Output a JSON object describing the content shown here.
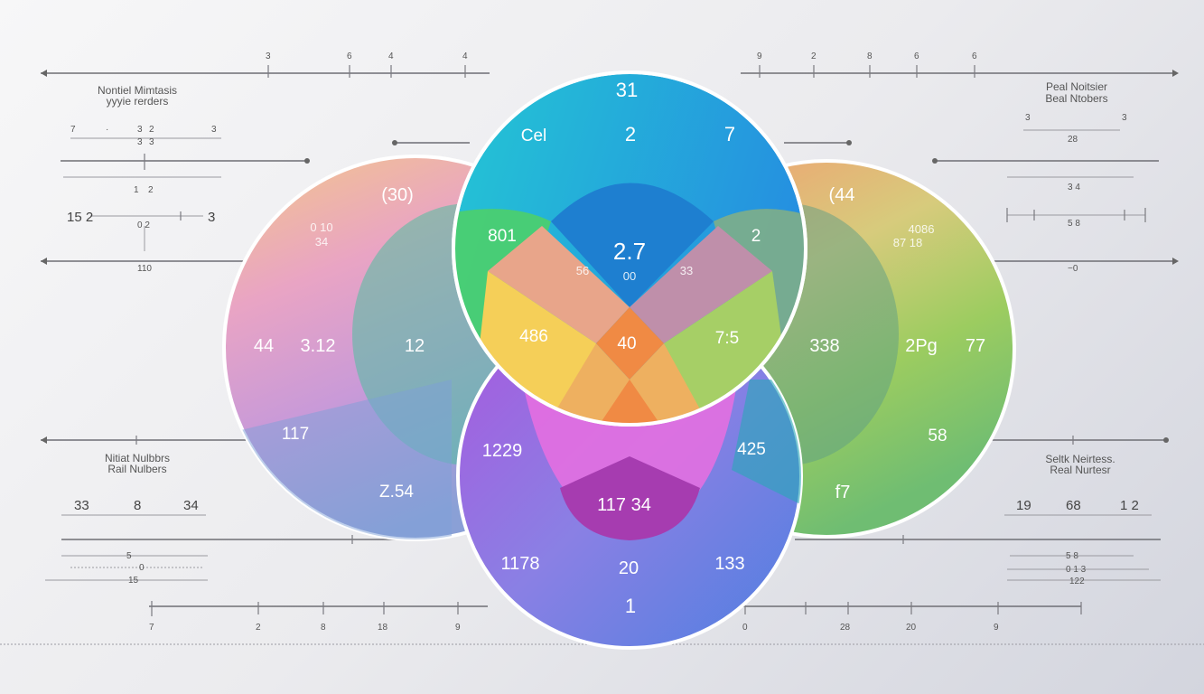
{
  "top_left_axis": {
    "ticks": [
      "3",
      "6",
      "4",
      "4"
    ]
  },
  "top_right_axis": {
    "ticks": [
      "9",
      "2",
      "8",
      "6",
      "6"
    ]
  },
  "captions": {
    "top_left": [
      "Nontiel Mimtasis",
      "yyyie rerders"
    ],
    "top_right": [
      "Peal Noitsier",
      "Beal Ntobers"
    ],
    "bottom_left": [
      "Nitiat Nulbbrs",
      "Rail Nulbers"
    ],
    "bottom_right": [
      "Seltk Neirtess.",
      "Real Nurtesr"
    ]
  },
  "left_scales": {
    "row1": [
      "7",
      "·",
      "3",
      "2",
      "3"
    ],
    "row1_sub": [
      "3",
      "3"
    ],
    "row2_sub": [
      "1",
      "2"
    ],
    "row3": [
      "15 2",
      "3"
    ],
    "row3_sub": "0 2",
    "row4_sub": "110",
    "row5": [
      "33",
      "8",
      "34"
    ],
    "row6_sub": [
      "5",
      "0",
      "15"
    ]
  },
  "right_scales": {
    "row1": [
      "3",
      "3"
    ],
    "row1_sub": "28",
    "row2_sub": "3 4",
    "row3_sub": "5 8",
    "row4_sub": "−0",
    "row5": [
      "19",
      "68",
      "1 2"
    ],
    "row6_sub": [
      "5 8",
      "0 1 3",
      "122"
    ]
  },
  "bottom_left_axis": {
    "ticks": [
      "7",
      "2",
      "8",
      "18",
      "9"
    ]
  },
  "bottom_right_axis": {
    "ticks": [
      "0",
      "28",
      "20",
      "9"
    ]
  },
  "regions": {
    "top": {
      "a": "31",
      "b": "Cel",
      "c": "2",
      "d": "7"
    },
    "top_center": {
      "main": "2.7",
      "sub": "00"
    },
    "top_left_overlap": "801",
    "top_right_overlap": "2",
    "small_left": "56",
    "small_right": "33",
    "left": {
      "a": "(30)",
      "b": "0 10",
      "c": "34",
      "d": "44",
      "e": "3.12",
      "f": "117",
      "g": "Z.54",
      "h": "12"
    },
    "center": {
      "yellow": "486",
      "orange": "40",
      "green": "7:5"
    },
    "right": {
      "a": "(44",
      "b": "4086",
      "c": "87 18",
      "d": "338",
      "e": "2Pg",
      "f": "77",
      "g": "58",
      "h": "f7"
    },
    "bottom": {
      "a": "1229",
      "b": "117 34",
      "c": "425",
      "d": "1178",
      "e": "20",
      "f": "133",
      "g": "1"
    }
  },
  "colors": {
    "cyan": "#27c3d6",
    "blue": "#2a8fdc",
    "green": "#4fcf72",
    "yellow": "#f6cf55",
    "orange": "#f28a4a",
    "purple": "#a45ddf",
    "violet": "#8a7de2",
    "lime": "#9fcb5d",
    "peach": "#f0a070",
    "pink": "#e88fb8"
  }
}
